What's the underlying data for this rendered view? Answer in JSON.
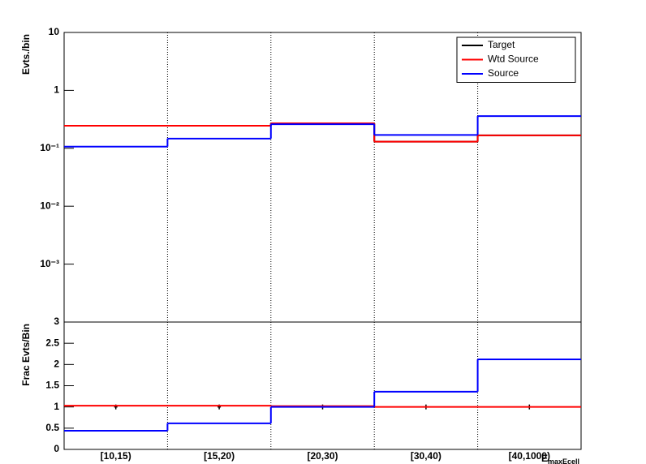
{
  "chart_data": [
    {
      "type": "step",
      "ylabel": "Evts./bin",
      "yscale": "log",
      "ylim": [
        0.0001,
        10
      ],
      "yticks": [
        {
          "value": 0.001,
          "label": "10⁻³"
        },
        {
          "value": 0.01,
          "label": "10⁻²"
        },
        {
          "value": 0.1,
          "label": "10⁻¹"
        },
        1,
        10
      ],
      "legend": "top-right",
      "series": [
        {
          "name": "Target",
          "color": "#000000",
          "values": [
            0.245,
            0.245,
            0.27,
            0.13,
            0.167
          ]
        },
        {
          "name": "Wtd Source",
          "color": "#ff0000",
          "values": [
            0.245,
            0.245,
            0.27,
            0.13,
            0.167
          ]
        },
        {
          "name": "Source",
          "color": "#0000ff",
          "values": [
            0.107,
            0.147,
            0.26,
            0.17,
            0.36
          ]
        }
      ]
    },
    {
      "type": "step",
      "ylabel": "Frac Evts/Bin",
      "xlabel": "E",
      "xlabel_sub": "maxEcell",
      "categories": [
        "[10,15)",
        "[15,20)",
        "[20,30)",
        "[30,40)",
        "[40,1000)"
      ],
      "ylim": [
        0,
        3
      ],
      "yticks": [
        0,
        0.5,
        1,
        1.5,
        2,
        2.5,
        3
      ],
      "series": [
        {
          "name": "Target",
          "color": "#000000",
          "marker": true,
          "values": [
            1,
            1,
            1,
            1,
            1
          ]
        },
        {
          "name": "Wtd Source",
          "color": "#ff0000",
          "values": [
            1.03,
            1.03,
            1.02,
            1.0,
            1.0
          ]
        },
        {
          "name": "Source",
          "color": "#0000ff",
          "values": [
            0.44,
            0.615,
            1.0,
            1.36,
            2.12
          ]
        }
      ]
    }
  ]
}
